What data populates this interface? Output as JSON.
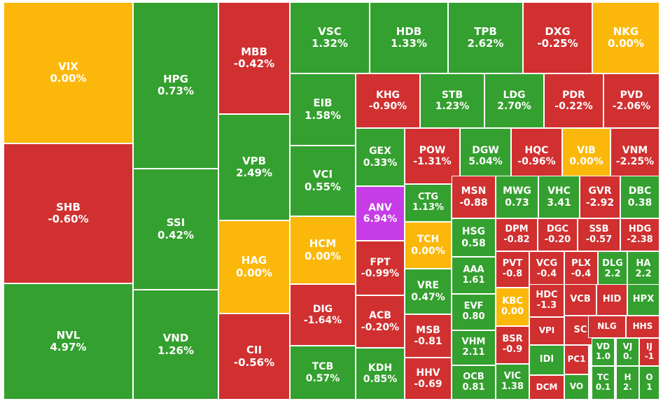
{
  "colors": {
    "up": "#34a02f",
    "down": "#d03030",
    "flat": "#fbb80a",
    "ceiling": "#c63ce6"
  },
  "chart_data": {
    "type": "treemap",
    "items": [
      {
        "symbol": "VIX",
        "change": "0.00%",
        "status": "flat"
      },
      {
        "symbol": "SHB",
        "change": "-0.60%",
        "status": "down"
      },
      {
        "symbol": "NVL",
        "change": "4.97%",
        "status": "up"
      },
      {
        "symbol": "HPG",
        "change": "0.73%",
        "status": "up"
      },
      {
        "symbol": "SSI",
        "change": "0.42%",
        "status": "up"
      },
      {
        "symbol": "VND",
        "change": "1.26%",
        "status": "up"
      },
      {
        "symbol": "MBB",
        "change": "-0.42%",
        "status": "down"
      },
      {
        "symbol": "VPB",
        "change": "2.49%",
        "status": "up"
      },
      {
        "symbol": "HAG",
        "change": "0.00%",
        "status": "flat"
      },
      {
        "symbol": "CII",
        "change": "-0.56%",
        "status": "down"
      },
      {
        "symbol": "VSC",
        "change": "1.32%",
        "status": "up"
      },
      {
        "symbol": "HDB",
        "change": "1.33%",
        "status": "up"
      },
      {
        "symbol": "TPB",
        "change": "2.62%",
        "status": "up"
      },
      {
        "symbol": "DXG",
        "change": "-0.25%",
        "status": "down"
      },
      {
        "symbol": "NKG",
        "change": "0.00%",
        "status": "flat"
      },
      {
        "symbol": "EIB",
        "change": "1.58%",
        "status": "up"
      },
      {
        "symbol": "VCI",
        "change": "0.55%",
        "status": "up"
      },
      {
        "symbol": "HCM",
        "change": "0.00%",
        "status": "flat"
      },
      {
        "symbol": "DIG",
        "change": "-1.64%",
        "status": "down"
      },
      {
        "symbol": "TCB",
        "change": "0.57%",
        "status": "up"
      },
      {
        "symbol": "KHG",
        "change": "-0.90%",
        "status": "down"
      },
      {
        "symbol": "STB",
        "change": "1.23%",
        "status": "up"
      },
      {
        "symbol": "LDG",
        "change": "2.70%",
        "status": "up"
      },
      {
        "symbol": "PDR",
        "change": "-0.22%",
        "status": "down"
      },
      {
        "symbol": "PVD",
        "change": "-2.06%",
        "status": "down"
      },
      {
        "symbol": "GEX",
        "change": "0.33%",
        "status": "up"
      },
      {
        "symbol": "ANV",
        "change": "6.94%",
        "status": "ceiling"
      },
      {
        "symbol": "FPT",
        "change": "-0.99%",
        "status": "down"
      },
      {
        "symbol": "ACB",
        "change": "-0.20%",
        "status": "down"
      },
      {
        "symbol": "KDH",
        "change": "0.85%",
        "status": "up"
      },
      {
        "symbol": "POW",
        "change": "-1.31%",
        "status": "down"
      },
      {
        "symbol": "DGW",
        "change": "5.04%",
        "status": "up"
      },
      {
        "symbol": "HQC",
        "change": "-0.96%",
        "status": "down"
      },
      {
        "symbol": "VIB",
        "change": "0.00%",
        "status": "flat"
      },
      {
        "symbol": "VNM",
        "change": "-2.25%",
        "status": "down"
      },
      {
        "symbol": "CTG",
        "change": "1.13%",
        "status": "up"
      },
      {
        "symbol": "TCH",
        "change": "0.00%",
        "status": "flat"
      },
      {
        "symbol": "VRE",
        "change": "0.47%",
        "status": "up"
      },
      {
        "symbol": "MSB",
        "change": "-0.81",
        "status": "down"
      },
      {
        "symbol": "HHV",
        "change": "-0.69",
        "status": "down"
      },
      {
        "symbol": "MSN",
        "change": "-0.88",
        "status": "down"
      },
      {
        "symbol": "MWG",
        "change": "0.73",
        "status": "up"
      },
      {
        "symbol": "VHC",
        "change": "3.41",
        "status": "up"
      },
      {
        "symbol": "GVR",
        "change": "-2.92",
        "status": "down"
      },
      {
        "symbol": "DBC",
        "change": "0.38",
        "status": "up"
      },
      {
        "symbol": "HSG",
        "change": "0.58",
        "status": "up"
      },
      {
        "symbol": "AAA",
        "change": "1.61",
        "status": "up"
      },
      {
        "symbol": "EVF",
        "change": "0.80",
        "status": "up"
      },
      {
        "symbol": "VHM",
        "change": "2.11",
        "status": "up"
      },
      {
        "symbol": "OCB",
        "change": "0.81",
        "status": "up"
      },
      {
        "symbol": "DPM",
        "change": "-0.82",
        "status": "down"
      },
      {
        "symbol": "DGC",
        "change": "-0.20",
        "status": "down"
      },
      {
        "symbol": "SSB",
        "change": "-0.57",
        "status": "down"
      },
      {
        "symbol": "HDG",
        "change": "-2.38",
        "status": "down"
      },
      {
        "symbol": "PVT",
        "change": "-0.8",
        "status": "down"
      },
      {
        "symbol": "VCG",
        "change": "-0.4",
        "status": "down"
      },
      {
        "symbol": "PLX",
        "change": "-0.4",
        "status": "down"
      },
      {
        "symbol": "DLG",
        "change": "2.2",
        "status": "up"
      },
      {
        "symbol": "HA",
        "change": "2.2",
        "status": "up"
      },
      {
        "symbol": "KBC",
        "change": "0.00",
        "status": "flat"
      },
      {
        "symbol": "HDC",
        "change": "-1.3",
        "status": "down"
      },
      {
        "symbol": "VCB",
        "change": "",
        "status": "down"
      },
      {
        "symbol": "HID",
        "change": "",
        "status": "down"
      },
      {
        "symbol": "HPX",
        "change": "",
        "status": "up"
      },
      {
        "symbol": "BSR",
        "change": "-0.9",
        "status": "down"
      },
      {
        "symbol": "VPI",
        "change": "",
        "status": "down"
      },
      {
        "symbol": "SC",
        "change": "",
        "status": "down"
      },
      {
        "symbol": "NLG",
        "change": "",
        "status": "down"
      },
      {
        "symbol": "HHS",
        "change": "",
        "status": "down"
      },
      {
        "symbol": "IDI",
        "change": "",
        "status": "up"
      },
      {
        "symbol": "PC1",
        "change": "",
        "status": "down"
      },
      {
        "symbol": "VD",
        "change": "1.0",
        "status": "up"
      },
      {
        "symbol": "VJ",
        "change": "0.",
        "status": "up"
      },
      {
        "symbol": "IJ",
        "change": "-1",
        "status": "down"
      },
      {
        "symbol": "VIC",
        "change": "1.38",
        "status": "up"
      },
      {
        "symbol": "DCM",
        "change": "",
        "status": "down"
      },
      {
        "symbol": "VO",
        "change": "",
        "status": "up"
      },
      {
        "symbol": "TC",
        "change": "0.1",
        "status": "up"
      },
      {
        "symbol": "H",
        "change": "2.",
        "status": "up"
      },
      {
        "symbol": "O",
        "change": "1",
        "status": "up"
      }
    ]
  }
}
